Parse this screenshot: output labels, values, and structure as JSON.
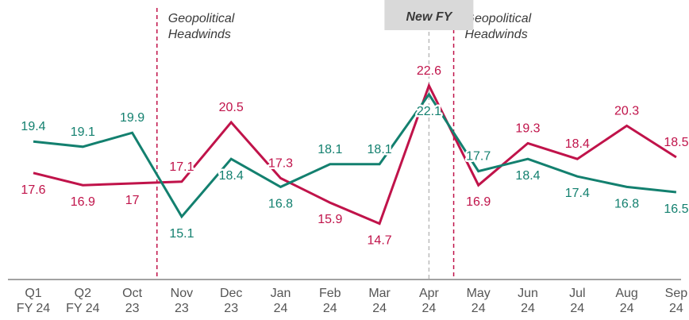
{
  "chart_data": {
    "type": "line",
    "categories": [
      [
        "Q1",
        "FY 24"
      ],
      [
        "Q2",
        "FY 24"
      ],
      [
        "Oct",
        "23"
      ],
      [
        "Nov",
        "23"
      ],
      [
        "Dec",
        "23"
      ],
      [
        "Jan",
        "24"
      ],
      [
        "Feb",
        "24"
      ],
      [
        "Mar",
        "24"
      ],
      [
        "Apr",
        "24"
      ],
      [
        "May",
        "24"
      ],
      [
        "Jun",
        "24"
      ],
      [
        "Jul",
        "24"
      ],
      [
        "Aug",
        "24"
      ],
      [
        "Sep",
        "24"
      ]
    ],
    "series": [
      {
        "color": "#c0134a",
        "values": [
          17.6,
          16.9,
          17.0,
          17.1,
          20.5,
          17.3,
          15.9,
          14.7,
          22.6,
          16.9,
          19.3,
          18.4,
          20.3,
          18.5
        ]
      },
      {
        "color": "#13806f",
        "values": [
          19.4,
          19.1,
          19.9,
          15.1,
          18.4,
          16.8,
          18.1,
          18.1,
          22.1,
          17.7,
          18.4,
          17.4,
          16.8,
          16.5
        ]
      }
    ],
    "ylim": [
      11.5,
      27.5
    ],
    "annotations": [
      "Geopolitical Headwinds",
      "New FY",
      "Geopolitical Headwinds"
    ]
  }
}
